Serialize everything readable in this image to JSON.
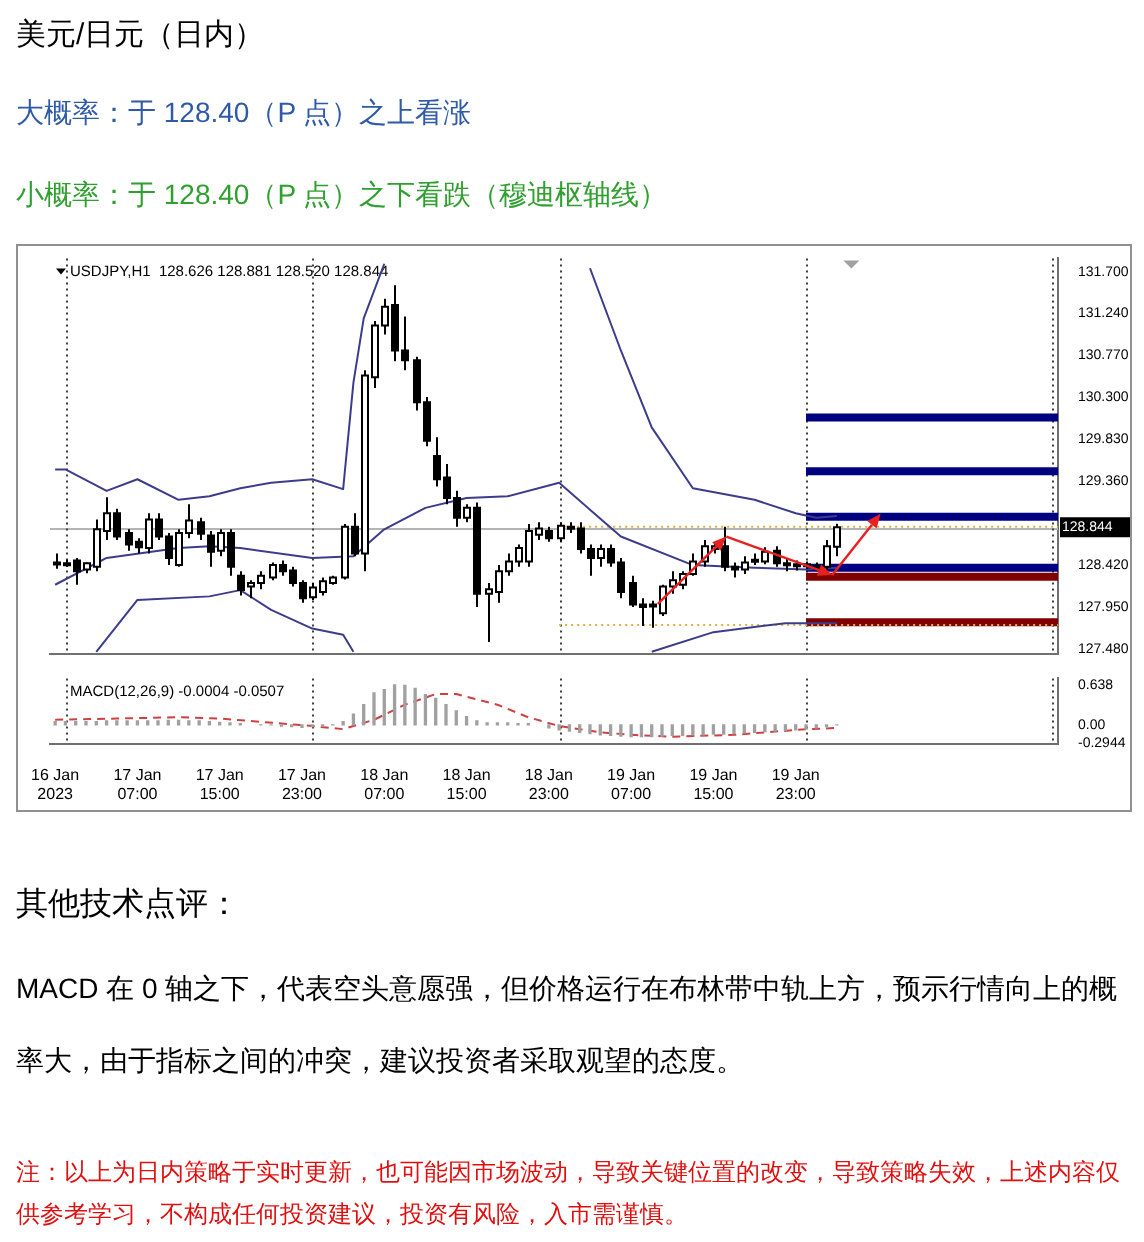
{
  "chart_data": [
    {
      "type": "candlestick",
      "title": "美元/日元（日内）",
      "subtitle": "大概率：于 128.40（P 点）之上看涨",
      "annotations": [
        "小概率：于 128.40（P 点）之下看跌（穆迪枢轴线）",
        "USDJPY,H1  128.626 128.881 128.520 128.844",
        "其他技术点评：",
        "MACD 在 0 轴之下，代表空头意愿强，但价格运行在布林带中轨上方，预示行情向上的概率大，由于指标之间的冲突，建议投资者采取观望的态度。",
        "注：以上为日内策略于实时更新，也可能因市场波动，导致关键位置的改变，导致策略失效，上述内容仅供参考学习，不构成任何投资建议，投资有风险，入市需谨慎。"
      ],
      "x": [
        "2023-01-16T23:00",
        "2023-01-17T00:00",
        "2023-01-17T01:00",
        "2023-01-17T02:00",
        "2023-01-17T03:00",
        "2023-01-17T04:00",
        "2023-01-17T05:00",
        "2023-01-17T06:00",
        "2023-01-17T07:00",
        "2023-01-17T08:00",
        "2023-01-17T09:00",
        "2023-01-17T10:00",
        "2023-01-17T11:00",
        "2023-01-17T12:00",
        "2023-01-17T13:00",
        "2023-01-17T14:00",
        "2023-01-17T15:00",
        "2023-01-17T16:00",
        "2023-01-17T17:00",
        "2023-01-17T18:00",
        "2023-01-17T19:00",
        "2023-01-17T20:00",
        "2023-01-17T21:00",
        "2023-01-17T22:00",
        "2023-01-17T23:00",
        "2023-01-18T00:00",
        "2023-01-18T01:00",
        "2023-01-18T02:00",
        "2023-01-18T03:00",
        "2023-01-18T04:00",
        "2023-01-18T05:00",
        "2023-01-18T06:00",
        "2023-01-18T07:00",
        "2023-01-18T08:00",
        "2023-01-18T09:00",
        "2023-01-18T10:00",
        "2023-01-18T11:00",
        "2023-01-18T12:00",
        "2023-01-18T13:00",
        "2023-01-18T14:00",
        "2023-01-18T15:00",
        "2023-01-18T16:00",
        "2023-01-18T17:00",
        "2023-01-18T18:00",
        "2023-01-18T19:00",
        "2023-01-18T20:00",
        "2023-01-18T21:00",
        "2023-01-18T22:00",
        "2023-01-18T23:00",
        "2023-01-19T00:00",
        "2023-01-19T01:00",
        "2023-01-19T02:00",
        "2023-01-19T03:00",
        "2023-01-19T04:00",
        "2023-01-19T05:00",
        "2023-01-19T06:00",
        "2023-01-19T07:00",
        "2023-01-19T08:00",
        "2023-01-19T09:00",
        "2023-01-19T10:00",
        "2023-01-19T11:00",
        "2023-01-19T12:00",
        "2023-01-19T13:00",
        "2023-01-19T14:00",
        "2023-01-19T15:00",
        "2023-01-19T16:00",
        "2023-01-19T17:00",
        "2023-01-19T18:00",
        "2023-01-19T19:00",
        "2023-01-19T20:00",
        "2023-01-19T21:00",
        "2023-01-19T22:00",
        "2023-01-19T23:00",
        "2023-01-20T00:00",
        "2023-01-20T01:00",
        "2023-01-20T02:00",
        "2023-01-20T03:00"
      ],
      "ohlc": [
        [
          128.45,
          128.55,
          128.38,
          128.44
        ],
        [
          128.44,
          128.48,
          128.4,
          128.42
        ],
        [
          128.47,
          128.5,
          128.2,
          128.35
        ],
        [
          128.37,
          128.45,
          128.33,
          128.44
        ],
        [
          128.4,
          128.93,
          128.35,
          128.82
        ],
        [
          128.8,
          129.18,
          128.7,
          129.0
        ],
        [
          129.0,
          129.05,
          128.7,
          128.74
        ],
        [
          128.78,
          128.82,
          128.58,
          128.65
        ],
        [
          128.68,
          128.72,
          128.55,
          128.62
        ],
        [
          128.61,
          129.0,
          128.55,
          128.93
        ],
        [
          128.93,
          129.0,
          128.7,
          128.74
        ],
        [
          128.74,
          128.78,
          128.42,
          128.5
        ],
        [
          128.42,
          128.82,
          128.4,
          128.78
        ],
        [
          128.78,
          129.1,
          128.72,
          128.92
        ],
        [
          128.9,
          128.95,
          128.7,
          128.77
        ],
        [
          128.75,
          128.8,
          128.4,
          128.57
        ],
        [
          128.58,
          128.82,
          128.52,
          128.78
        ],
        [
          128.78,
          128.82,
          128.3,
          128.4
        ],
        [
          128.3,
          128.35,
          128.08,
          128.14
        ],
        [
          128.18,
          128.25,
          128.05,
          128.22
        ],
        [
          128.22,
          128.35,
          128.15,
          128.3
        ],
        [
          128.28,
          128.45,
          128.25,
          128.42
        ],
        [
          128.42,
          128.47,
          128.3,
          128.35
        ],
        [
          128.36,
          128.4,
          128.18,
          128.22
        ],
        [
          128.22,
          128.25,
          128.0,
          128.05
        ],
        [
          128.06,
          128.22,
          128.03,
          128.17
        ],
        [
          128.12,
          128.28,
          128.08,
          128.24
        ],
        [
          128.22,
          128.3,
          128.2,
          128.28
        ],
        [
          128.28,
          128.88,
          128.26,
          128.85
        ],
        [
          128.85,
          129.0,
          128.52,
          128.55
        ],
        [
          128.55,
          130.6,
          128.35,
          130.54
        ],
        [
          130.52,
          131.15,
          130.4,
          131.1
        ],
        [
          131.1,
          131.4,
          131.0,
          131.31
        ],
        [
          131.33,
          131.55,
          130.7,
          130.82
        ],
        [
          130.82,
          131.2,
          130.6,
          130.71
        ],
        [
          130.71,
          130.75,
          130.15,
          130.24
        ],
        [
          130.24,
          130.3,
          129.75,
          129.81
        ],
        [
          129.64,
          129.85,
          129.3,
          129.38
        ],
        [
          129.4,
          129.55,
          129.1,
          129.17
        ],
        [
          129.17,
          129.25,
          128.85,
          128.95
        ],
        [
          128.95,
          129.1,
          128.9,
          129.06
        ],
        [
          129.06,
          129.12,
          127.95,
          128.1
        ],
        [
          128.1,
          128.22,
          127.56,
          128.15
        ],
        [
          128.12,
          128.42,
          128.0,
          128.35
        ],
        [
          128.35,
          128.55,
          128.3,
          128.46
        ],
        [
          128.46,
          128.65,
          128.4,
          128.61
        ],
        [
          128.46,
          128.88,
          128.4,
          128.8
        ],
        [
          128.76,
          128.9,
          128.7,
          128.83
        ],
        [
          128.8,
          128.85,
          128.68,
          128.72
        ],
        [
          128.72,
          128.9,
          128.68,
          128.86
        ],
        [
          128.85,
          128.9,
          128.78,
          128.83
        ],
        [
          128.83,
          128.9,
          128.55,
          128.6
        ],
        [
          128.6,
          128.65,
          128.3,
          128.5
        ],
        [
          128.5,
          128.65,
          128.4,
          128.6
        ],
        [
          128.6,
          128.65,
          128.4,
          128.45
        ],
        [
          128.45,
          128.5,
          128.05,
          128.12
        ],
        [
          128.22,
          128.3,
          127.95,
          127.98
        ],
        [
          127.98,
          128.05,
          127.74,
          127.95
        ],
        [
          127.96,
          128.02,
          127.72,
          127.98
        ],
        [
          127.88,
          128.2,
          127.85,
          128.18
        ],
        [
          128.18,
          128.35,
          128.1,
          128.25
        ],
        [
          128.2,
          128.35,
          128.15,
          128.32
        ],
        [
          128.32,
          128.55,
          128.3,
          128.46
        ],
        [
          128.46,
          128.7,
          128.4,
          128.63
        ],
        [
          128.6,
          128.68,
          128.55,
          128.63
        ],
        [
          128.63,
          128.85,
          128.35,
          128.4
        ],
        [
          128.4,
          128.45,
          128.28,
          128.37
        ],
        [
          128.37,
          128.52,
          128.32,
          128.45
        ],
        [
          128.46,
          128.55,
          128.42,
          128.48
        ],
        [
          128.46,
          128.62,
          128.43,
          128.57
        ],
        [
          128.58,
          128.63,
          128.4,
          128.44
        ],
        [
          128.44,
          128.5,
          128.35,
          128.42
        ],
        [
          128.42,
          128.47,
          128.36,
          128.43
        ],
        [
          128.43,
          128.46,
          128.38,
          128.41
        ],
        [
          128.41,
          128.45,
          128.35,
          128.38
        ],
        [
          128.4,
          128.7,
          128.37,
          128.63
        ],
        [
          128.626,
          128.881,
          128.52,
          128.844
        ]
      ],
      "series": [
        {
          "type": "line",
          "color": "#3c3c8c",
          "x": [
            "2023-01-16T23:00",
            "2023-01-17T00:00",
            "2023-01-17T04:00",
            "2023-01-17T07:00",
            "2023-01-17T11:00",
            "2023-01-17T14:00",
            "2023-01-17T17:00",
            "2023-01-17T20:00",
            "2023-01-18T00:00",
            "2023-01-18T03:00",
            "2023-01-18T04:00",
            "2023-01-18T05:00",
            "2023-01-18T07:00",
            "2023-01-18T15:00",
            "2023-01-19T03:00",
            "2023-01-19T06:00",
            "2023-01-19T09:00",
            "2023-01-19T13:00",
            "2023-01-19T19:00",
            "2023-01-19T23:00",
            "2023-01-20T01:00",
            "2023-01-20T03:00"
          ],
          "values": [
            129.49,
            129.49,
            129.25,
            129.38,
            129.15,
            129.19,
            129.28,
            129.34,
            129.38,
            129.27,
            130.46,
            131.18,
            131.79,
            null,
            131.74,
            130.82,
            129.96,
            129.28,
            129.15,
            129.0,
            128.95,
            128.97
          ]
        },
        {
          "type": "line",
          "color": "#3c3c8c",
          "x": [
            "2023-01-16T23:00",
            "2023-01-17T04:00",
            "2023-01-17T11:00",
            "2023-01-17T14:00",
            "2023-01-17T17:00",
            "2023-01-18T00:00",
            "2023-01-18T04:00",
            "2023-01-18T07:00",
            "2023-01-18T11:00",
            "2023-01-18T15:00",
            "2023-01-18T19:00",
            "2023-01-19T00:00",
            "2023-01-19T03:00",
            "2023-01-19T06:00",
            "2023-01-19T13:00",
            "2023-01-19T19:00",
            "2023-01-20T00:00",
            "2023-01-20T03:00"
          ],
          "values": [
            128.2,
            128.5,
            128.61,
            128.63,
            128.61,
            128.5,
            128.52,
            128.82,
            129.06,
            129.17,
            129.19,
            129.34,
            129.04,
            128.74,
            128.42,
            128.39,
            128.37,
            128.39
          ]
        },
        {
          "type": "line",
          "color": "#3c3c8c",
          "x": [
            "2023-01-17T03:00",
            "2023-01-17T07:00",
            "2023-01-17T14:00",
            "2023-01-17T17:00",
            "2023-01-17T20:00",
            "2023-01-18T00:00",
            "2023-01-18T03:00",
            "2023-01-18T04:00",
            "2023-01-18T15:00",
            "2023-01-19T09:00",
            "2023-01-19T15:00",
            "2023-01-19T22:00",
            "2023-01-20T03:00"
          ],
          "values": [
            127.45,
            128.03,
            128.07,
            128.14,
            127.92,
            127.71,
            127.64,
            127.45,
            null,
            127.45,
            127.67,
            127.77,
            127.77
          ]
        },
        {
          "type": "line",
          "color": "#e0b040",
          "line_style": "dotted",
          "x": [
            "2023-01-19T00:00",
            "2023-01-21T00:30"
          ],
          "values": [
            128.85,
            128.85
          ]
        },
        {
          "type": "line",
          "color": "#e0b040",
          "line_style": "dotted",
          "x": [
            "2023-01-19T00:00",
            "2023-01-21T00:30"
          ],
          "values": [
            127.75,
            127.75
          ]
        },
        {
          "type": "line",
          "color": "#000080",
          "x": [
            "2023-01-20T00:00",
            "2023-01-21T00:30"
          ],
          "values": [
            130.07,
            130.07
          ]
        },
        {
          "type": "line",
          "color": "#000080",
          "x": [
            "2023-01-20T00:00",
            "2023-01-21T00:30"
          ],
          "values": [
            129.47,
            129.47
          ]
        },
        {
          "type": "line",
          "color": "#000080",
          "x": [
            "2023-01-20T00:00",
            "2023-01-21T00:30"
          ],
          "values": [
            128.96,
            128.96
          ]
        },
        {
          "type": "line",
          "color": "#000080",
          "x": [
            "2023-01-20T00:00",
            "2023-01-21T00:30"
          ],
          "values": [
            128.39,
            128.39
          ]
        },
        {
          "type": "line",
          "color": "#800000",
          "x": [
            "2023-01-20T00:00",
            "2023-01-21T00:30"
          ],
          "values": [
            128.29,
            128.29
          ]
        },
        {
          "type": "line",
          "color": "#800000",
          "x": [
            "2023-01-20T00:00",
            "2023-01-21T00:30"
          ],
          "values": [
            127.78,
            127.78
          ]
        }
      ],
      "xlim": [
        "2023-01-16T22:30",
        "2023-01-21T00:30"
      ],
      "ylim": [
        127.43,
        131.85
      ],
      "yticks": [
        {
          "value": 127.48,
          "label": "127.480"
        },
        {
          "value": 127.95,
          "label": "127.950"
        },
        {
          "value": 128.42,
          "label": "128.420"
        },
        {
          "value": 129.36,
          "label": "129.360"
        },
        {
          "value": 129.83,
          "label": "129.830"
        },
        {
          "value": 130.3,
          "label": "130.300"
        },
        {
          "value": 130.77,
          "label": "130.770"
        },
        {
          "value": 131.24,
          "label": "131.240"
        },
        {
          "value": 131.7,
          "label": "131.700"
        }
      ],
      "ref_lines": [
        {
          "axis": "y",
          "value": 128.844,
          "label": "128.844",
          "color": "#b4b4b4",
          "line_style": "solid"
        },
        {
          "axis": "x",
          "value": "2023-01-17T00:00",
          "color": "#404040",
          "line_style": "dotted"
        },
        {
          "axis": "x",
          "value": "2023-01-18T00:00",
          "color": "#404040",
          "line_style": "dotted"
        },
        {
          "axis": "x",
          "value": "2023-01-19T00:00",
          "color": "#404040",
          "line_style": "dotted"
        },
        {
          "axis": "x",
          "value": "2023-01-20T00:00",
          "color": "#404040",
          "line_style": "dotted"
        },
        {
          "axis": "x",
          "value": "2023-01-21T00:00",
          "color": "#404040",
          "line_style": "dotted"
        }
      ],
      "tick_labels": "y",
      "grid": false,
      "legend": false
    },
    {
      "type": "bar",
      "annotations": [
        "MACD(12,26,9) -0.0004 -0.0507"
      ],
      "x": [
        "2023-01-16T23:00",
        "2023-01-17T00:00",
        "2023-01-17T01:00",
        "2023-01-17T02:00",
        "2023-01-17T03:00",
        "2023-01-17T04:00",
        "2023-01-17T05:00",
        "2023-01-17T06:00",
        "2023-01-17T07:00",
        "2023-01-17T08:00",
        "2023-01-17T09:00",
        "2023-01-17T10:00",
        "2023-01-17T11:00",
        "2023-01-17T12:00",
        "2023-01-17T13:00",
        "2023-01-17T14:00",
        "2023-01-17T15:00",
        "2023-01-17T16:00",
        "2023-01-17T17:00",
        "2023-01-17T18:00",
        "2023-01-17T19:00",
        "2023-01-17T20:00",
        "2023-01-17T21:00",
        "2023-01-17T22:00",
        "2023-01-17T23:00",
        "2023-01-18T00:00",
        "2023-01-18T01:00",
        "2023-01-18T02:00",
        "2023-01-18T03:00",
        "2023-01-18T04:00",
        "2023-01-18T05:00",
        "2023-01-18T06:00",
        "2023-01-18T07:00",
        "2023-01-18T08:00",
        "2023-01-18T09:00",
        "2023-01-18T10:00",
        "2023-01-18T11:00",
        "2023-01-18T12:00",
        "2023-01-18T13:00",
        "2023-01-18T14:00",
        "2023-01-18T15:00",
        "2023-01-18T16:00",
        "2023-01-18T17:00",
        "2023-01-18T18:00",
        "2023-01-18T19:00",
        "2023-01-18T20:00",
        "2023-01-18T21:00",
        "2023-01-18T22:00",
        "2023-01-18T23:00",
        "2023-01-19T00:00",
        "2023-01-19T01:00",
        "2023-01-19T02:00",
        "2023-01-19T03:00",
        "2023-01-19T04:00",
        "2023-01-19T05:00",
        "2023-01-19T06:00",
        "2023-01-19T07:00",
        "2023-01-19T08:00",
        "2023-01-19T09:00",
        "2023-01-19T10:00",
        "2023-01-19T11:00",
        "2023-01-19T12:00",
        "2023-01-19T13:00",
        "2023-01-19T14:00",
        "2023-01-19T15:00",
        "2023-01-19T16:00",
        "2023-01-19T17:00",
        "2023-01-19T18:00",
        "2023-01-19T19:00",
        "2023-01-19T20:00",
        "2023-01-19T21:00",
        "2023-01-19T22:00",
        "2023-01-19T23:00",
        "2023-01-20T00:00",
        "2023-01-20T01:00",
        "2023-01-20T02:00",
        "2023-01-20T03:00"
      ],
      "series": [
        {
          "type": "bar",
          "color": "#a0a0a0",
          "values": [
            0.05,
            0.05,
            0.05,
            0.05,
            0.05,
            0.06,
            0.06,
            0.06,
            0.06,
            0.06,
            0.06,
            0.07,
            0.07,
            0.06,
            0.06,
            0.05,
            0.04,
            0.03,
            0.02,
            null,
            0,
            0,
            -0.02,
            -0.03,
            -0.04,
            -0.03,
            -0.02,
            0,
            0.05,
            0.17,
            0.32,
            0.51,
            0.56,
            0.638,
            0.63,
            0.58,
            0.48,
            0.42,
            0.32,
            0.22,
            0.13,
            0.06,
            0.03,
            0.03,
            0.03,
            0.02,
            0.02,
            null,
            -0.05,
            -0.08,
            -0.1,
            -0.12,
            -0.14,
            -0.16,
            -0.17,
            -0.18,
            -0.19,
            -0.19,
            -0.19,
            -0.18,
            -0.17,
            -0.17,
            -0.16,
            -0.16,
            -0.15,
            -0.15,
            -0.14,
            -0.13,
            -0.12,
            -0.11,
            -0.1,
            -0.09,
            -0.08,
            -0.07,
            -0.05,
            -0.03,
            -0.0004
          ]
        },
        {
          "type": "line",
          "color": "#d04040",
          "line_style": "dashed",
          "x": [
            "2023-01-16T23:00",
            "2023-01-17T05:00",
            "2023-01-17T11:00",
            "2023-01-17T15:00",
            "2023-01-17T18:00",
            "2023-01-18T00:00",
            "2023-01-18T03:00",
            "2023-01-18T06:00",
            "2023-01-18T09:00",
            "2023-01-18T12:00",
            "2023-01-18T14:00",
            "2023-01-18T18:00",
            "2023-01-18T21:00",
            "2023-01-19T00:00",
            "2023-01-19T04:00",
            "2023-01-19T07:00",
            "2023-01-19T11:00",
            "2023-01-19T17:00",
            "2023-01-20T00:00",
            "2023-01-20T03:00"
          ],
          "values": [
            0.08,
            0.1,
            0.12,
            0.1,
            0.06,
            -0.02,
            -0.07,
            0.08,
            0.32,
            0.49,
            0.49,
            0.32,
            0.12,
            -0.02,
            -0.12,
            -0.16,
            -0.19,
            -0.16,
            -0.07,
            -0.0507
          ]
        }
      ],
      "xlim": [
        "2023-01-16T22:30",
        "2023-01-21T00:30"
      ],
      "ylim": [
        -0.3,
        0.74
      ],
      "yticks": [
        -0.2944,
        {
          "value": 0,
          "label": "0.00"
        },
        0.638
      ],
      "xticks": [
        {
          "value": "2023-01-16T23:00",
          "label": "16 Jan 2023"
        },
        {
          "value": "2023-01-17T07:00",
          "label": "17 Jan 07:00"
        },
        {
          "value": "2023-01-17T15:00",
          "label": "17 Jan 15:00"
        },
        {
          "value": "2023-01-17T23:00",
          "label": "17 Jan 23:00"
        },
        {
          "value": "2023-01-18T07:00",
          "label": "18 Jan 07:00"
        },
        {
          "value": "2023-01-18T15:00",
          "label": "18 Jan 15:00"
        },
        {
          "value": "2023-01-18T23:00",
          "label": "18 Jan 23:00"
        },
        {
          "value": "2023-01-19T07:00",
          "label": "19 Jan 07:00"
        },
        {
          "value": "2023-01-19T15:00",
          "label": "19 Jan 15:00"
        },
        {
          "value": "2023-01-19T23:00",
          "label": "19 Jan 23:00"
        }
      ],
      "ref_lines": [
        {
          "axis": "x",
          "value": "2023-01-17T00:00",
          "color": "#404040",
          "line_style": "dotted"
        },
        {
          "axis": "x",
          "value": "2023-01-18T00:00",
          "color": "#404040",
          "line_style": "dotted"
        },
        {
          "axis": "x",
          "value": "2023-01-19T00:00",
          "color": "#404040",
          "line_style": "dotted"
        },
        {
          "axis": "x",
          "value": "2023-01-20T00:00",
          "color": "#404040",
          "line_style": "dotted"
        },
        {
          "axis": "x",
          "value": "2023-01-21T00:00",
          "color": "#404040",
          "line_style": "dotted"
        }
      ],
      "grid": false,
      "legend": false
    }
  ]
}
